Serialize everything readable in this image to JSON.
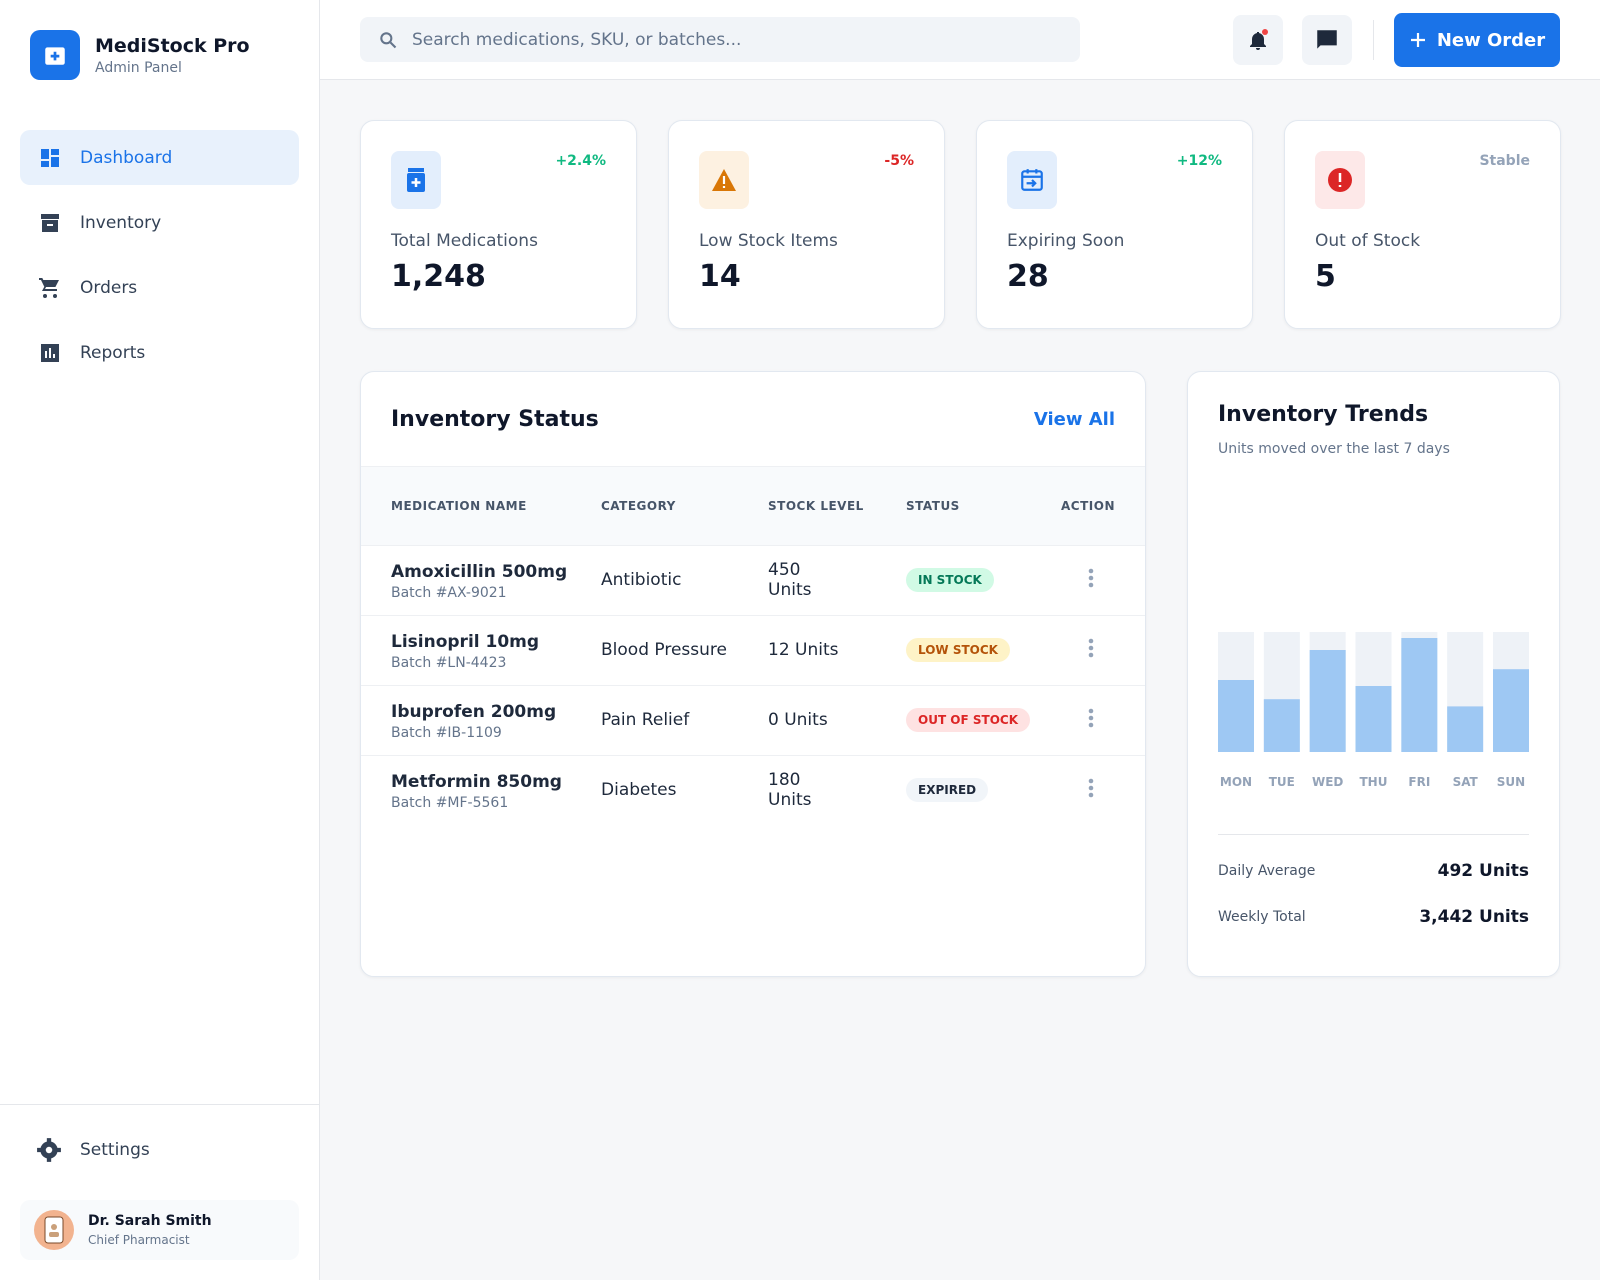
{
  "sidebar": {
    "brand": "MediStock Pro",
    "subtitle": "Admin Panel",
    "nav": [
      "Dashboard",
      "Inventory",
      "Orders",
      "Reports"
    ],
    "settings": "Settings",
    "user": {
      "name": "Dr. Sarah Smith",
      "role": "Chief Pharmacist"
    }
  },
  "header": {
    "search_placeholder": "Search medications, SKU, or batches...",
    "new_order": "New Order"
  },
  "stats": [
    {
      "label": "Total Medications",
      "value": "1,248",
      "change": "+2.4%"
    },
    {
      "label": "Low Stock Items",
      "value": "14",
      "change": "-5%"
    },
    {
      "label": "Expiring Soon",
      "value": "28",
      "change": "+12%"
    },
    {
      "label": "Out of Stock",
      "value": "5",
      "change": "Stable"
    }
  ],
  "inventory_status": {
    "title": "Inventory Status",
    "view_all": "View All",
    "columns": [
      "MEDICATION NAME",
      "CATEGORY",
      "STOCK LEVEL",
      "STATUS",
      "ACTION"
    ],
    "rows": [
      {
        "name": "Amoxicillin 500mg",
        "batch": "Batch #AX-9021",
        "category": "Antibiotic",
        "stock": "450 Units",
        "status": "IN STOCK"
      },
      {
        "name": "Lisinopril 10mg",
        "batch": "Batch #LN-4423",
        "category": "Blood Pressure",
        "stock": "12 Units",
        "status": "LOW STOCK"
      },
      {
        "name": "Ibuprofen 200mg",
        "batch": "Batch #IB-1109",
        "category": "Pain Relief",
        "stock": "0 Units",
        "status": "OUT OF STOCK"
      },
      {
        "name": "Metformin 850mg",
        "batch": "Batch #MF-5561",
        "category": "Diabetes",
        "stock": "180 Units",
        "status": "EXPIRED"
      }
    ]
  },
  "trends": {
    "title": "Inventory Trends",
    "subtitle": "Units moved over the last 7 days",
    "chart_data": {
      "type": "bar",
      "categories": [
        "MON",
        "TUE",
        "WED",
        "THU",
        "FRI",
        "SAT",
        "SUN"
      ],
      "values": [
        60,
        44,
        85,
        55,
        95,
        38,
        69
      ],
      "ylim": [
        0,
        100
      ],
      "color": "#9ec8f3",
      "track_color": "#eef2f7"
    },
    "summary": [
      {
        "label": "Daily Average",
        "value": "492 Units"
      },
      {
        "label": "Weekly Total",
        "value": "3,442 Units"
      }
    ]
  }
}
